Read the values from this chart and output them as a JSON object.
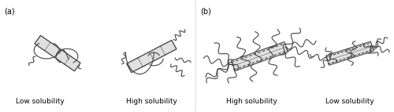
{
  "background_color": "#ffffff",
  "label_a": "(a)",
  "label_b": "(b)",
  "text_low_sol_a": "Low solubility",
  "text_high_sol_a": "High solubility",
  "text_high_sol_b": "High solubility",
  "text_low_sol_b": "Low solubility",
  "label_fontsize": 7,
  "text_fontsize": 6.5,
  "line_color": "#444444",
  "tube_fill": "#e0e0e0",
  "tube_edge": "#444444",
  "divider_color": "#cccccc"
}
